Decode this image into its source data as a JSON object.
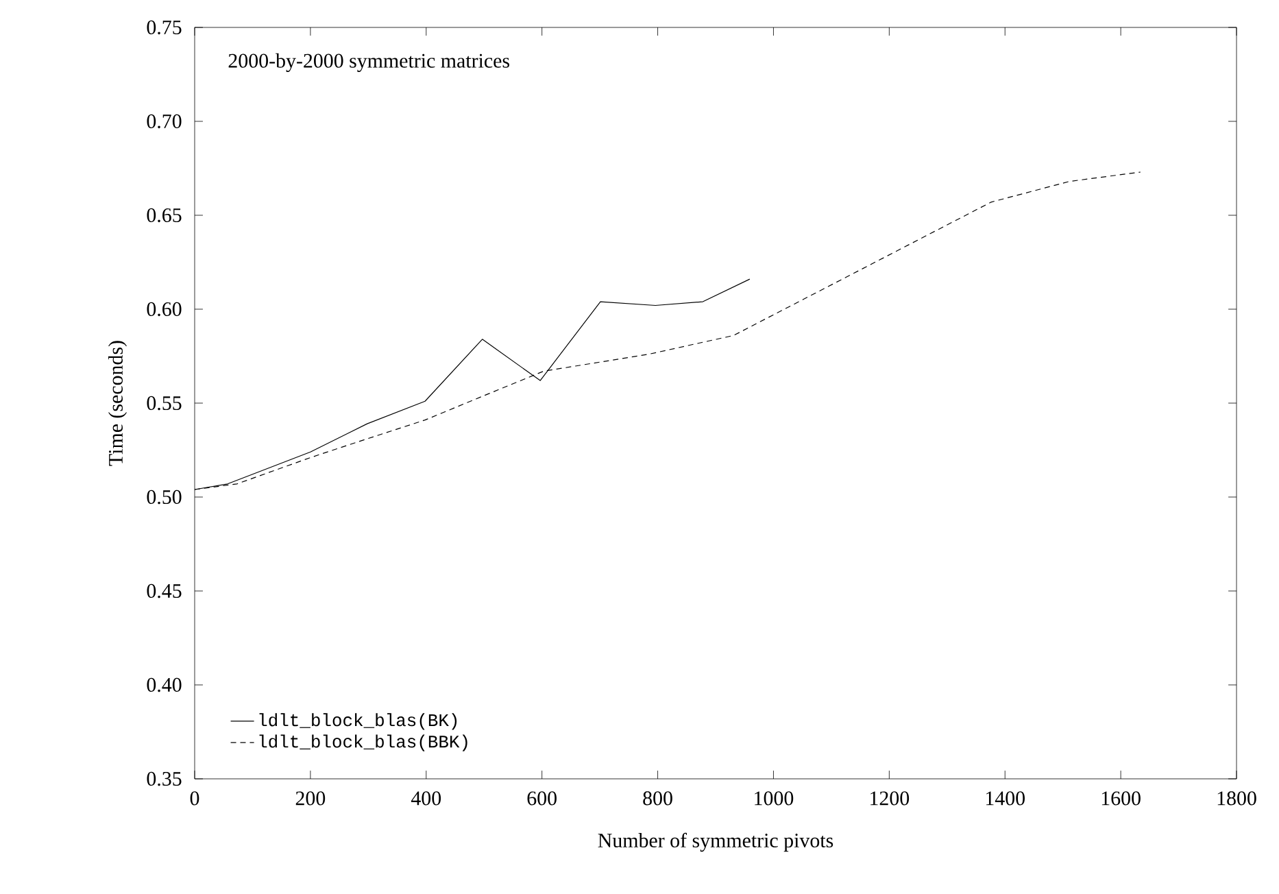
{
  "chart_data": {
    "type": "line",
    "xlabel": "Number of symmetric pivots",
    "ylabel": "Time (seconds)",
    "annotations": [
      "2000-by-2000 symmetric matrices"
    ],
    "xlim": [
      0,
      1800
    ],
    "ylim": [
      0.35,
      0.75
    ],
    "xticks": [
      0,
      200,
      400,
      600,
      800,
      1000,
      1200,
      1400,
      1600,
      1800
    ],
    "yticks": [
      {
        "value": 0.35,
        "label": "0.35"
      },
      {
        "value": 0.4,
        "label": "0.40"
      },
      {
        "value": 0.45,
        "label": "0.45"
      },
      {
        "value": 0.5,
        "label": "0.50"
      },
      {
        "value": 0.55,
        "label": "0.55"
      },
      {
        "value": 0.6,
        "label": "0.60"
      },
      {
        "value": 0.65,
        "label": "0.65"
      },
      {
        "value": 0.7,
        "label": "0.70"
      },
      {
        "value": 0.75,
        "label": "0.75"
      }
    ],
    "grid": false,
    "legend": "bottom left",
    "marker": "none",
    "series": [
      {
        "name": "ldlt_block_blas(BK)",
        "color": "#000000",
        "line_style": "solid",
        "x": [
          0,
          57,
          200,
          298,
          398,
          497,
          597,
          701,
          796,
          878,
          959
        ],
        "values": [
          0.504,
          0.507,
          0.524,
          0.539,
          0.551,
          0.584,
          0.562,
          0.604,
          0.602,
          0.604,
          0.616
        ]
      },
      {
        "name": "ldlt_block_blas(BBK)",
        "color": "#000000",
        "line_style": "dashed",
        "x": [
          0,
          73,
          200,
          298,
          398,
          500,
          603,
          784,
          931,
          1376,
          1511,
          1634
        ],
        "values": [
          0.504,
          0.507,
          0.521,
          0.531,
          0.541,
          0.554,
          0.567,
          0.576,
          0.586,
          0.657,
          0.668,
          0.673
        ]
      }
    ]
  }
}
